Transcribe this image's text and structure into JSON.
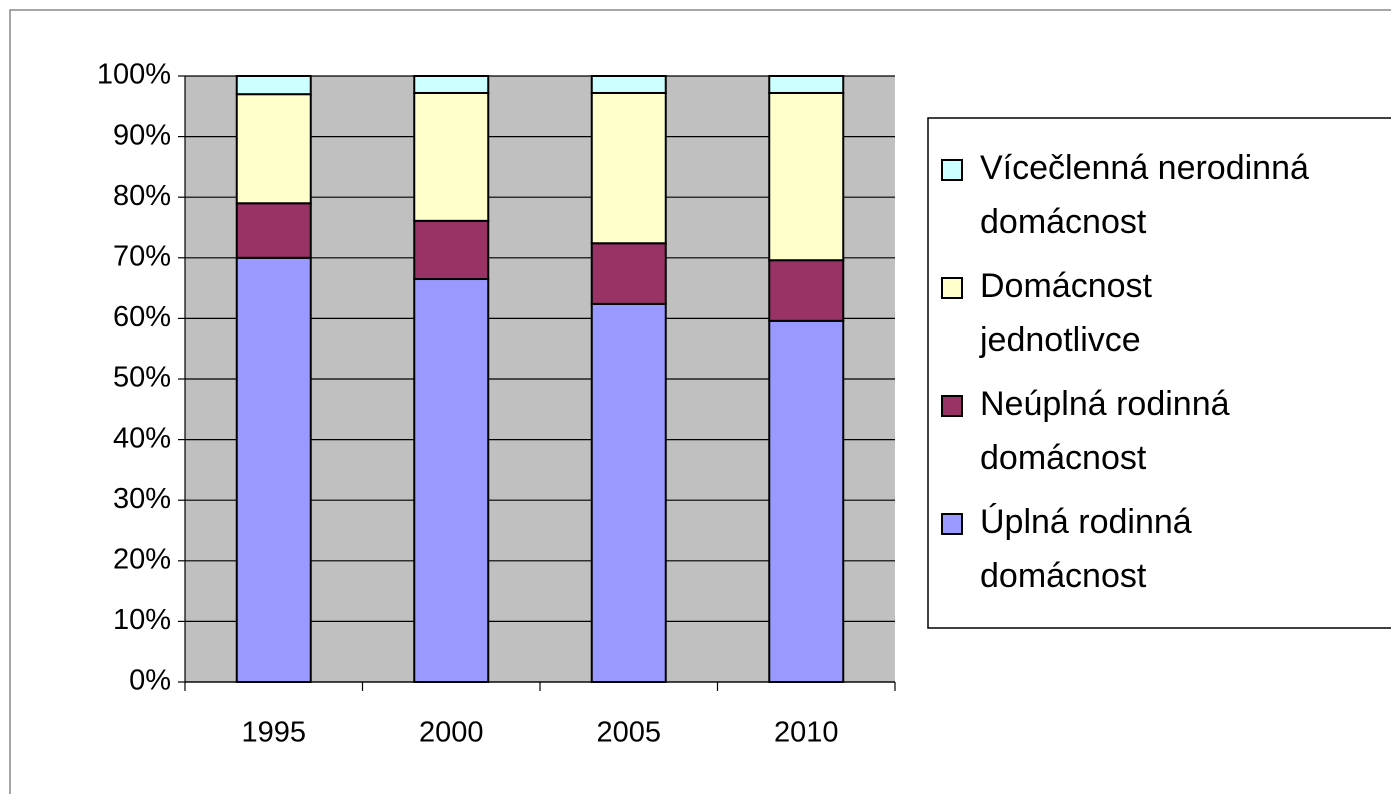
{
  "chart_data": {
    "type": "stacked_bar",
    "categories": [
      "1995",
      "2000",
      "2005",
      "2010"
    ],
    "series": [
      {
        "name": "Úplná rodinná domácnost",
        "color": "#9999ff",
        "values": [
          70,
          66.5,
          62.4,
          59.6
        ]
      },
      {
        "name": "Neúplná rodinná domácnost",
        "color": "#993366",
        "values": [
          9,
          9.6,
          10,
          10
        ]
      },
      {
        "name": "Domácnost jednotlivce",
        "color": "#ffffcc",
        "values": [
          18,
          21.1,
          24.8,
          27.6
        ]
      },
      {
        "name": "Vícečlenná nerodinná domácnost",
        "color": "#ccffff",
        "values": [
          3,
          2.8,
          2.8,
          2.8
        ]
      }
    ],
    "ylim": [
      0,
      100
    ],
    "yticks": [
      {
        "value": 0,
        "label": "0%"
      },
      {
        "value": 10,
        "label": "10%"
      },
      {
        "value": 20,
        "label": "20%"
      },
      {
        "value": 30,
        "label": "30%"
      },
      {
        "value": 40,
        "label": "40%"
      },
      {
        "value": 50,
        "label": "50%"
      },
      {
        "value": 60,
        "label": "60%"
      },
      {
        "value": 70,
        "label": "70%"
      },
      {
        "value": 80,
        "label": "80%"
      },
      {
        "value": 90,
        "label": "90%"
      },
      {
        "value": 100,
        "label": "100%"
      }
    ],
    "grid": true,
    "plot_background": "#c0c0c0",
    "legend": "right"
  }
}
